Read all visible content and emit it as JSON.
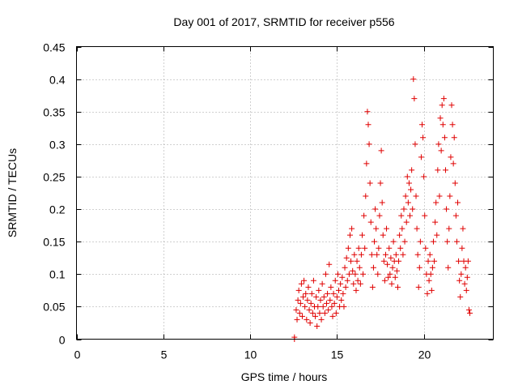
{
  "chart_data": {
    "type": "scatter",
    "title": "Day 001 of 2017, SRMTID for receiver p556",
    "xlabel": "GPS time / hours",
    "ylabel": "SRMTID / TECUs",
    "xlim": [
      0,
      24
    ],
    "ylim": [
      0,
      0.45
    ],
    "xticks": [
      0,
      5,
      10,
      15,
      20
    ],
    "xtick_labels": [
      "0",
      "5",
      "10",
      "15",
      "20"
    ],
    "yticks": [
      0,
      0.05,
      0.1,
      0.15,
      0.2,
      0.25,
      0.3,
      0.35,
      0.4,
      0.45
    ],
    "ytick_labels": [
      "0",
      "0.05",
      "0.1",
      "0.15",
      "0.2",
      "0.25",
      "0.3",
      "0.35",
      "0.4",
      "0.45"
    ],
    "grid": true,
    "marker": "+",
    "series_color": "#e00000",
    "series": [
      {
        "name": "SRMTID",
        "points": [
          [
            12.55,
            0.0
          ],
          [
            12.55,
            0.003
          ],
          [
            12.65,
            0.045
          ],
          [
            12.7,
            0.03
          ],
          [
            12.75,
            0.06
          ],
          [
            12.8,
            0.075
          ],
          [
            12.85,
            0.04
          ],
          [
            12.9,
            0.055
          ],
          [
            12.95,
            0.085
          ],
          [
            13.0,
            0.035
          ],
          [
            13.05,
            0.065
          ],
          [
            13.1,
            0.09
          ],
          [
            13.15,
            0.05
          ],
          [
            13.2,
            0.07
          ],
          [
            13.25,
            0.03
          ],
          [
            13.3,
            0.06
          ],
          [
            13.35,
            0.08
          ],
          [
            13.4,
            0.045
          ],
          [
            13.45,
            0.025
          ],
          [
            13.5,
            0.055
          ],
          [
            13.55,
            0.07
          ],
          [
            13.6,
            0.04
          ],
          [
            13.65,
            0.09
          ],
          [
            13.7,
            0.05
          ],
          [
            13.75,
            0.035
          ],
          [
            13.8,
            0.065
          ],
          [
            13.85,
            0.02
          ],
          [
            13.9,
            0.05
          ],
          [
            13.95,
            0.075
          ],
          [
            14.0,
            0.04
          ],
          [
            14.05,
            0.06
          ],
          [
            14.1,
            0.03
          ],
          [
            14.15,
            0.085
          ],
          [
            14.2,
            0.05
          ],
          [
            14.25,
            0.065
          ],
          [
            14.3,
            0.04
          ],
          [
            14.35,
            0.1
          ],
          [
            14.4,
            0.055
          ],
          [
            14.45,
            0.07
          ],
          [
            14.5,
            0.045
          ],
          [
            14.55,
            0.115
          ],
          [
            14.6,
            0.06
          ],
          [
            14.65,
            0.08
          ],
          [
            14.7,
            0.05
          ],
          [
            14.75,
            0.035
          ],
          [
            14.8,
            0.07
          ],
          [
            14.85,
            0.055
          ],
          [
            14.9,
            0.09
          ],
          [
            14.95,
            0.04
          ],
          [
            15.0,
            0.065
          ],
          [
            15.05,
            0.1
          ],
          [
            15.1,
            0.075
          ],
          [
            15.15,
            0.05
          ],
          [
            15.2,
            0.085
          ],
          [
            15.25,
            0.06
          ],
          [
            15.3,
            0.095
          ],
          [
            15.35,
            0.07
          ],
          [
            15.4,
            0.05
          ],
          [
            15.45,
            0.11
          ],
          [
            15.5,
            0.08
          ],
          [
            15.55,
            0.125
          ],
          [
            15.6,
            0.09
          ],
          [
            15.65,
            0.14
          ],
          [
            15.7,
            0.1
          ],
          [
            15.75,
            0.16
          ],
          [
            15.8,
            0.12
          ],
          [
            15.85,
            0.17
          ],
          [
            15.9,
            0.105
          ],
          [
            15.95,
            0.085
          ],
          [
            16.0,
            0.13
          ],
          [
            16.05,
            0.1
          ],
          [
            16.1,
            0.075
          ],
          [
            16.15,
            0.12
          ],
          [
            16.2,
            0.09
          ],
          [
            16.25,
            0.14
          ],
          [
            16.3,
            0.11
          ],
          [
            16.35,
            0.085
          ],
          [
            16.4,
            0.13
          ],
          [
            16.45,
            0.16
          ],
          [
            16.5,
            0.1
          ],
          [
            16.55,
            0.19
          ],
          [
            16.6,
            0.14
          ],
          [
            16.65,
            0.22
          ],
          [
            16.7,
            0.27
          ],
          [
            16.75,
            0.35
          ],
          [
            16.8,
            0.33
          ],
          [
            16.85,
            0.3
          ],
          [
            16.9,
            0.24
          ],
          [
            16.95,
            0.18
          ],
          [
            17.0,
            0.13
          ],
          [
            17.05,
            0.08
          ],
          [
            17.1,
            0.11
          ],
          [
            17.15,
            0.15
          ],
          [
            17.2,
            0.2
          ],
          [
            17.25,
            0.17
          ],
          [
            17.3,
            0.13
          ],
          [
            17.35,
            0.1
          ],
          [
            17.4,
            0.14
          ],
          [
            17.45,
            0.19
          ],
          [
            17.5,
            0.24
          ],
          [
            17.55,
            0.29
          ],
          [
            17.6,
            0.21
          ],
          [
            17.65,
            0.16
          ],
          [
            17.7,
            0.12
          ],
          [
            17.75,
            0.09
          ],
          [
            17.8,
            0.13
          ],
          [
            17.85,
            0.17
          ],
          [
            17.9,
            0.115
          ],
          [
            17.95,
            0.095
          ],
          [
            18.0,
            0.14
          ],
          [
            18.05,
            0.1
          ],
          [
            18.1,
            0.125
          ],
          [
            18.15,
            0.085
          ],
          [
            18.2,
            0.11
          ],
          [
            18.25,
            0.15
          ],
          [
            18.3,
            0.12
          ],
          [
            18.35,
            0.095
          ],
          [
            18.4,
            0.13
          ],
          [
            18.45,
            0.105
          ],
          [
            18.5,
            0.08
          ],
          [
            18.55,
            0.12
          ],
          [
            18.6,
            0.16
          ],
          [
            18.65,
            0.14
          ],
          [
            18.7,
            0.19
          ],
          [
            18.75,
            0.17
          ],
          [
            18.8,
            0.13
          ],
          [
            18.85,
            0.2
          ],
          [
            18.9,
            0.15
          ],
          [
            18.95,
            0.22
          ],
          [
            19.0,
            0.18
          ],
          [
            19.05,
            0.25
          ],
          [
            19.1,
            0.21
          ],
          [
            19.15,
            0.24
          ],
          [
            19.2,
            0.19
          ],
          [
            19.25,
            0.23
          ],
          [
            19.3,
            0.26
          ],
          [
            19.35,
            0.2
          ],
          [
            19.4,
            0.4
          ],
          [
            19.45,
            0.37
          ],
          [
            19.5,
            0.3
          ],
          [
            19.55,
            0.22
          ],
          [
            19.6,
            0.17
          ],
          [
            19.65,
            0.13
          ],
          [
            19.7,
            0.08
          ],
          [
            19.75,
            0.11
          ],
          [
            19.8,
            0.15
          ],
          [
            19.85,
            0.28
          ],
          [
            19.9,
            0.33
          ],
          [
            19.95,
            0.31
          ],
          [
            20.0,
            0.25
          ],
          [
            20.05,
            0.19
          ],
          [
            20.1,
            0.14
          ],
          [
            20.15,
            0.1
          ],
          [
            20.2,
            0.07
          ],
          [
            20.25,
            0.12
          ],
          [
            20.3,
            0.09
          ],
          [
            20.35,
            0.13
          ],
          [
            20.4,
            0.1
          ],
          [
            20.45,
            0.075
          ],
          [
            20.5,
            0.11
          ],
          [
            20.55,
            0.15
          ],
          [
            20.6,
            0.12
          ],
          [
            20.65,
            0.18
          ],
          [
            20.7,
            0.21
          ],
          [
            20.75,
            0.16
          ],
          [
            20.8,
            0.26
          ],
          [
            20.85,
            0.3
          ],
          [
            20.9,
            0.22
          ],
          [
            20.95,
            0.34
          ],
          [
            21.0,
            0.29
          ],
          [
            21.05,
            0.36
          ],
          [
            21.1,
            0.33
          ],
          [
            21.15,
            0.37
          ],
          [
            21.2,
            0.31
          ],
          [
            21.25,
            0.26
          ],
          [
            21.3,
            0.2
          ],
          [
            21.35,
            0.15
          ],
          [
            21.4,
            0.11
          ],
          [
            21.45,
            0.17
          ],
          [
            21.5,
            0.22
          ],
          [
            21.55,
            0.28
          ],
          [
            21.6,
            0.36
          ],
          [
            21.65,
            0.33
          ],
          [
            21.7,
            0.27
          ],
          [
            21.75,
            0.31
          ],
          [
            21.8,
            0.24
          ],
          [
            21.85,
            0.19
          ],
          [
            21.9,
            0.15
          ],
          [
            21.95,
            0.21
          ],
          [
            22.0,
            0.12
          ],
          [
            22.05,
            0.09
          ],
          [
            22.1,
            0.065
          ],
          [
            22.15,
            0.1
          ],
          [
            22.2,
            0.14
          ],
          [
            22.25,
            0.17
          ],
          [
            22.3,
            0.12
          ],
          [
            22.35,
            0.085
          ],
          [
            22.4,
            0.11
          ],
          [
            22.45,
            0.075
          ],
          [
            22.5,
            0.095
          ],
          [
            22.55,
            0.12
          ],
          [
            22.6,
            0.045
          ],
          [
            22.65,
            0.04
          ]
        ]
      }
    ]
  }
}
